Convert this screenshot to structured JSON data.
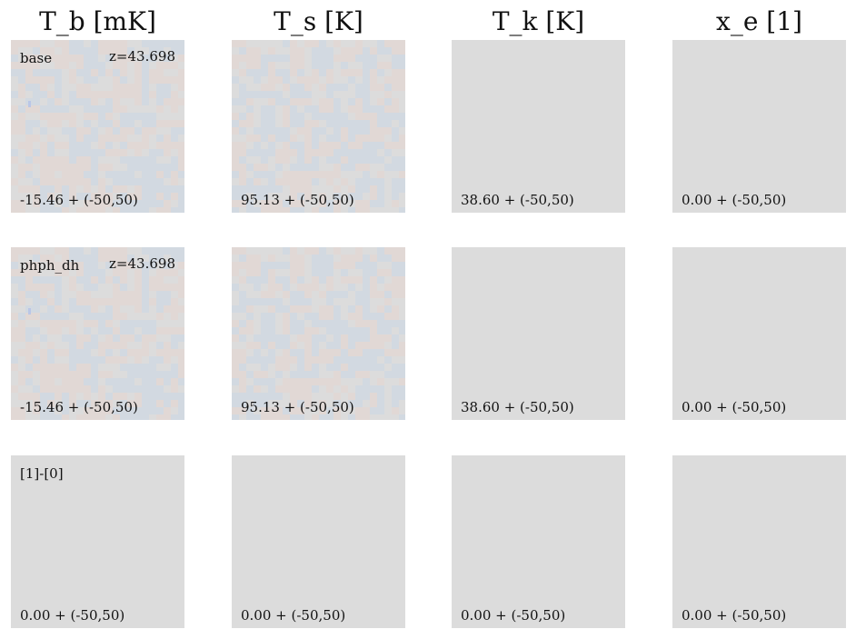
{
  "columns": [
    {
      "title": "T_b [mK]"
    },
    {
      "title": "T_s [K]"
    },
    {
      "title": "T_k [K]"
    },
    {
      "title": "x_e [1]"
    }
  ],
  "rows": [
    {
      "label": "base",
      "redshift": "z=43.698",
      "panels": [
        {
          "range_text": "-15.46 + (-50,50)",
          "map": "noise"
        },
        {
          "range_text": "95.13 + (-50,50)",
          "map": "noise"
        },
        {
          "range_text": "38.60 + (-50,50)",
          "map": "flat"
        },
        {
          "range_text": "0.00 + (-50,50)",
          "map": "flat"
        }
      ]
    },
    {
      "label": "phph_dh",
      "redshift": "z=43.698",
      "panels": [
        {
          "range_text": "-15.46 + (-50,50)",
          "map": "noise"
        },
        {
          "range_text": "95.13 + (-50,50)",
          "map": "noise"
        },
        {
          "range_text": "38.60 + (-50,50)",
          "map": "flat"
        },
        {
          "range_text": "0.00 + (-50,50)",
          "map": "flat"
        }
      ]
    },
    {
      "label": "[1]-[0]",
      "redshift": "",
      "panels": [
        {
          "range_text": "0.00 + (-50,50)",
          "map": "flat"
        },
        {
          "range_text": "0.00 + (-50,50)",
          "map": "flat"
        },
        {
          "range_text": "0.00 + (-50,50)",
          "map": "flat"
        },
        {
          "range_text": "0.00 + (-50,50)",
          "map": "flat"
        }
      ]
    }
  ],
  "colors": {
    "flat": "#dcdcdc",
    "warm": "#e1d8d5",
    "cool": "#d2d9e1",
    "neutral": "#dcdcdc",
    "accent_cool": "#bac6e7"
  },
  "chart_data": {
    "type": "heatmap",
    "grid": [
      3,
      4
    ],
    "column_titles": [
      "T_b [mK]",
      "T_s [K]",
      "T_k [K]",
      "x_e [1]"
    ],
    "row_labels": [
      "base",
      "phph_dh",
      "[1]-[0]"
    ],
    "redshift": "z=43.698",
    "values": [
      {
        "row": "base",
        "column": "T_b [mK]",
        "offset": -15.46,
        "range": [
          -50,
          50
        ]
      },
      {
        "row": "base",
        "column": "T_s [K]",
        "offset": 95.13,
        "range": [
          -50,
          50
        ]
      },
      {
        "row": "base",
        "column": "T_k [K]",
        "offset": 38.6,
        "range": [
          -50,
          50
        ]
      },
      {
        "row": "base",
        "column": "x_e [1]",
        "offset": 0.0,
        "range": [
          -50,
          50
        ]
      },
      {
        "row": "phph_dh",
        "column": "T_b [mK]",
        "offset": -15.46,
        "range": [
          -50,
          50
        ]
      },
      {
        "row": "phph_dh",
        "column": "T_s [K]",
        "offset": 95.13,
        "range": [
          -50,
          50
        ]
      },
      {
        "row": "phph_dh",
        "column": "T_k [K]",
        "offset": 38.6,
        "range": [
          -50,
          50
        ]
      },
      {
        "row": "phph_dh",
        "column": "x_e [1]",
        "offset": 0.0,
        "range": [
          -50,
          50
        ]
      },
      {
        "row": "[1]-[0]",
        "column": "T_b [mK]",
        "offset": 0.0,
        "range": [
          -50,
          50
        ]
      },
      {
        "row": "[1]-[0]",
        "column": "T_s [K]",
        "offset": 0.0,
        "range": [
          -50,
          50
        ]
      },
      {
        "row": "[1]-[0]",
        "column": "T_k [K]",
        "offset": 0.0,
        "range": [
          -50,
          50
        ]
      },
      {
        "row": "[1]-[0]",
        "column": "x_e [1]",
        "offset": 0.0,
        "range": [
          -50,
          50
        ]
      }
    ]
  }
}
